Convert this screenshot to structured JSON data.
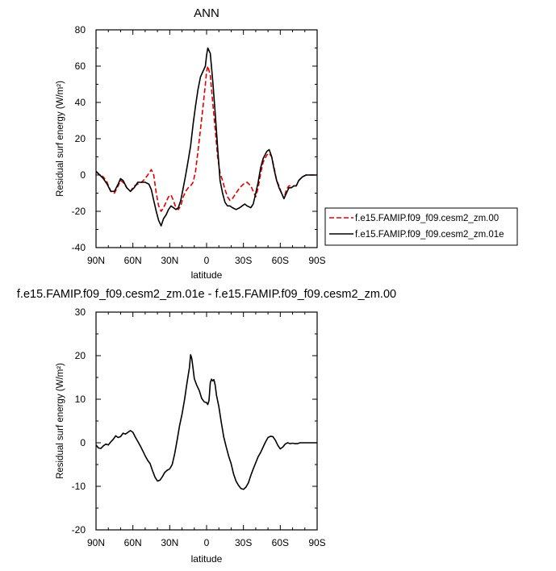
{
  "chart_data": [
    {
      "type": "line",
      "title": "ANN",
      "xlabel": "latitude",
      "ylabel": "Residual surf energy (W/m²)",
      "xlim": [
        90,
        -90
      ],
      "ylim": [
        -40,
        80
      ],
      "x_ticks": [
        90,
        60,
        30,
        0,
        -30,
        -60,
        -90
      ],
      "x_tick_labels": [
        "90N",
        "60N",
        "30N",
        "0",
        "30S",
        "60S",
        "90S"
      ],
      "y_ticks": [
        -40,
        -20,
        0,
        20,
        40,
        60,
        80
      ],
      "y_tick_labels": [
        "-40",
        "-20",
        "0",
        "20",
        "40",
        "60",
        "80"
      ],
      "legend_placement": "right",
      "series": [
        {
          "name": "f.e15.FAMIP.f09_f09.cesm2_zm.00",
          "color": "#e00000",
          "dash": "dashed",
          "points": [
            [
              90,
              2
            ],
            [
              87,
              0
            ],
            [
              84,
              -1
            ],
            [
              81,
              -4
            ],
            [
              78,
              -9
            ],
            [
              75,
              -10
            ],
            [
              72,
              -6
            ],
            [
              70,
              -3
            ],
            [
              68,
              -4
            ],
            [
              65,
              -7
            ],
            [
              62,
              -9
            ],
            [
              59,
              -6
            ],
            [
              56,
              -5
            ],
            [
              53,
              -4
            ],
            [
              50,
              -2
            ],
            [
              47,
              1
            ],
            [
              45,
              3
            ],
            [
              43,
              0
            ],
            [
              41,
              -10
            ],
            [
              39,
              -17
            ],
            [
              37,
              -20
            ],
            [
              35,
              -18
            ],
            [
              33,
              -15
            ],
            [
              31,
              -12
            ],
            [
              29,
              -11
            ],
            [
              27,
              -14
            ],
            [
              25,
              -18
            ],
            [
              23,
              -19
            ],
            [
              21,
              -17
            ],
            [
              19,
              -12
            ],
            [
              17,
              -9
            ],
            [
              15,
              -7
            ],
            [
              13,
              -6
            ],
            [
              11,
              -4
            ],
            [
              9,
              2
            ],
            [
              7,
              13
            ],
            [
              5,
              25
            ],
            [
              3,
              37
            ],
            [
              1,
              50
            ],
            [
              0,
              57
            ],
            [
              -1,
              60
            ],
            [
              -3,
              55
            ],
            [
              -5,
              40
            ],
            [
              -7,
              25
            ],
            [
              -9,
              10
            ],
            [
              -11,
              1
            ],
            [
              -13,
              -3
            ],
            [
              -15,
              -8
            ],
            [
              -17,
              -12
            ],
            [
              -19,
              -14
            ],
            [
              -21,
              -13
            ],
            [
              -24,
              -10
            ],
            [
              -27,
              -7
            ],
            [
              -30,
              -5
            ],
            [
              -33,
              -4
            ],
            [
              -36,
              -6
            ],
            [
              -38,
              -9
            ],
            [
              -40,
              -12
            ],
            [
              -42,
              -7
            ],
            [
              -44,
              1
            ],
            [
              -46,
              7
            ],
            [
              -49,
              11
            ],
            [
              -51,
              12
            ],
            [
              -53,
              10
            ],
            [
              -55,
              4
            ],
            [
              -57,
              -3
            ],
            [
              -59,
              -6
            ],
            [
              -61,
              -10
            ],
            [
              -63,
              -13
            ],
            [
              -65,
              -8
            ],
            [
              -67,
              -6
            ],
            [
              -69,
              -6
            ],
            [
              -71,
              -6
            ],
            [
              -73,
              -6
            ],
            [
              -75,
              -3
            ],
            [
              -78,
              -1
            ],
            [
              -81,
              0
            ],
            [
              -84,
              0
            ],
            [
              -87,
              0
            ],
            [
              -90,
              0
            ]
          ]
        },
        {
          "name": "f.e15.FAMIP.f09_f09.cesm2_zm.01e",
          "color": "#000000",
          "dash": "solid",
          "points": [
            [
              90,
              2
            ],
            [
              87,
              0
            ],
            [
              84,
              -2
            ],
            [
              81,
              -5
            ],
            [
              78,
              -9
            ],
            [
              75,
              -9
            ],
            [
              72,
              -5
            ],
            [
              70,
              -2
            ],
            [
              68,
              -3
            ],
            [
              65,
              -7
            ],
            [
              62,
              -9
            ],
            [
              59,
              -7
            ],
            [
              56,
              -4
            ],
            [
              53,
              -4
            ],
            [
              50,
              -4
            ],
            [
              47,
              -5
            ],
            [
              45,
              -8
            ],
            [
              43,
              -14
            ],
            [
              41,
              -20
            ],
            [
              39,
              -25
            ],
            [
              37,
              -28
            ],
            [
              35,
              -24
            ],
            [
              33,
              -22
            ],
            [
              31,
              -19
            ],
            [
              29,
              -17
            ],
            [
              27,
              -18
            ],
            [
              25,
              -19
            ],
            [
              23,
              -18
            ],
            [
              21,
              -14
            ],
            [
              19,
              -7
            ],
            [
              17,
              0
            ],
            [
              15,
              8
            ],
            [
              13,
              16
            ],
            [
              11,
              28
            ],
            [
              9,
              38
            ],
            [
              7,
              47
            ],
            [
              5,
              54
            ],
            [
              3,
              57
            ],
            [
              1,
              60
            ],
            [
              0,
              66
            ],
            [
              -1,
              70
            ],
            [
              -3,
              67
            ],
            [
              -5,
              52
            ],
            [
              -7,
              34
            ],
            [
              -9,
              15
            ],
            [
              -11,
              -3
            ],
            [
              -13,
              -10
            ],
            [
              -15,
              -15
            ],
            [
              -17,
              -17
            ],
            [
              -19,
              -17
            ],
            [
              -21,
              -18
            ],
            [
              -24,
              -19
            ],
            [
              -27,
              -18
            ],
            [
              -29,
              -17
            ],
            [
              -31,
              -16
            ],
            [
              -33,
              -17
            ],
            [
              -36,
              -18
            ],
            [
              -38,
              -16
            ],
            [
              -40,
              -10
            ],
            [
              -42,
              -4
            ],
            [
              -44,
              4
            ],
            [
              -46,
              9
            ],
            [
              -49,
              13
            ],
            [
              -51,
              14
            ],
            [
              -53,
              10
            ],
            [
              -55,
              3
            ],
            [
              -57,
              -3
            ],
            [
              -59,
              -7
            ],
            [
              -61,
              -10
            ],
            [
              -63,
              -13
            ],
            [
              -65,
              -10
            ],
            [
              -67,
              -7
            ],
            [
              -69,
              -7
            ],
            [
              -71,
              -6
            ],
            [
              -73,
              -6
            ],
            [
              -75,
              -3
            ],
            [
              -78,
              -1
            ],
            [
              -81,
              0
            ],
            [
              -84,
              0
            ],
            [
              -87,
              0
            ],
            [
              -90,
              0
            ]
          ]
        }
      ]
    },
    {
      "type": "line",
      "title": "f.e15.FAMIP.f09_f09.cesm2_zm.01e - f.e15.FAMIP.f09_f09.cesm2_zm.00",
      "xlabel": "latitude",
      "ylabel": "Residual surf energy (W/m²)",
      "xlim": [
        90,
        -90
      ],
      "ylim": [
        -20,
        30
      ],
      "x_ticks": [
        90,
        60,
        30,
        0,
        -30,
        -60,
        -90
      ],
      "x_tick_labels": [
        "90N",
        "60N",
        "30N",
        "0",
        "30S",
        "60S",
        "90S"
      ],
      "y_ticks": [
        -20,
        -10,
        0,
        10,
        20,
        30
      ],
      "y_tick_labels": [
        "-20",
        "-10",
        "0",
        "10",
        "20",
        "30"
      ],
      "series": [
        {
          "color": "#000000",
          "dash": "solid",
          "points": [
            [
              90,
              -0.5
            ],
            [
              88,
              -1.2
            ],
            [
              86,
              -1.3
            ],
            [
              84,
              -0.7
            ],
            [
              82,
              -0.3
            ],
            [
              80,
              -0.5
            ],
            [
              78,
              0.2
            ],
            [
              76,
              0.8
            ],
            [
              74,
              1.6
            ],
            [
              72,
              1.2
            ],
            [
              70,
              1.4
            ],
            [
              68,
              2.2
            ],
            [
              66,
              2.0
            ],
            [
              64,
              2.4
            ],
            [
              62,
              2.8
            ],
            [
              60,
              2.4
            ],
            [
              58,
              1.3
            ],
            [
              56,
              0.3
            ],
            [
              54,
              -0.7
            ],
            [
              52,
              -1.8
            ],
            [
              50,
              -3.0
            ],
            [
              48,
              -4.0
            ],
            [
              46,
              -4.8
            ],
            [
              44,
              -6.4
            ],
            [
              42,
              -7.9
            ],
            [
              40,
              -8.8
            ],
            [
              38,
              -8.6
            ],
            [
              36,
              -7.8
            ],
            [
              34,
              -6.8
            ],
            [
              32,
              -6.3
            ],
            [
              30,
              -6.0
            ],
            [
              28,
              -5.0
            ],
            [
              26,
              -2.6
            ],
            [
              24,
              0.6
            ],
            [
              22,
              3.9
            ],
            [
              20,
              6.6
            ],
            [
              18,
              9.8
            ],
            [
              16,
              13.6
            ],
            [
              14,
              17.2
            ],
            [
              13,
              20.2
            ],
            [
              12,
              19.3
            ],
            [
              11,
              17.0
            ],
            [
              10,
              14.7
            ],
            [
              8,
              13.2
            ],
            [
              6,
              12.0
            ],
            [
              4,
              10.2
            ],
            [
              2,
              9.4
            ],
            [
              0,
              9.2
            ],
            [
              -1,
              8.8
            ],
            [
              -2,
              9.7
            ],
            [
              -3,
              13.8
            ],
            [
              -4,
              14.6
            ],
            [
              -5,
              14.2
            ],
            [
              -6,
              14.5
            ],
            [
              -7,
              13.2
            ],
            [
              -8,
              11.0
            ],
            [
              -10,
              8.3
            ],
            [
              -12,
              4.6
            ],
            [
              -14,
              1.3
            ],
            [
              -16,
              -1.0
            ],
            [
              -18,
              -3.1
            ],
            [
              -20,
              -4.8
            ],
            [
              -22,
              -7.2
            ],
            [
              -24,
              -8.8
            ],
            [
              -26,
              -9.8
            ],
            [
              -28,
              -10.5
            ],
            [
              -30,
              -10.7
            ],
            [
              -32,
              -10.2
            ],
            [
              -34,
              -9.2
            ],
            [
              -36,
              -7.5
            ],
            [
              -38,
              -6.0
            ],
            [
              -40,
              -4.6
            ],
            [
              -42,
              -3.2
            ],
            [
              -44,
              -2.2
            ],
            [
              -46,
              -1.0
            ],
            [
              -48,
              0.2
            ],
            [
              -50,
              1.2
            ],
            [
              -52,
              1.5
            ],
            [
              -54,
              1.4
            ],
            [
              -56,
              0.6
            ],
            [
              -58,
              -0.6
            ],
            [
              -60,
              -1.4
            ],
            [
              -62,
              -1.0
            ],
            [
              -64,
              -0.3
            ],
            [
              -66,
              0.0
            ],
            [
              -68,
              -0.2
            ],
            [
              -70,
              -0.1
            ],
            [
              -72,
              -0.2
            ],
            [
              -74,
              -0.2
            ],
            [
              -76,
              0.0
            ],
            [
              -78,
              0.0
            ],
            [
              -80,
              0.0
            ],
            [
              -84,
              0.0
            ],
            [
              -90,
              0.0
            ]
          ]
        }
      ]
    }
  ]
}
